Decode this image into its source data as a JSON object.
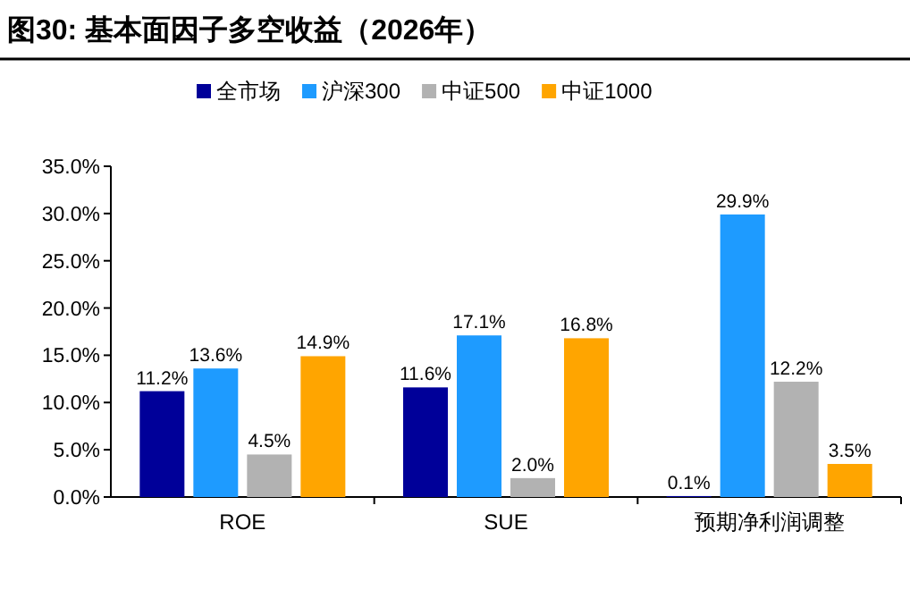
{
  "chart_data": {
    "type": "bar",
    "title": "图30:  基本面因子多空收益（2026年）",
    "categories": [
      "ROE",
      "SUE",
      "预期净利润调整"
    ],
    "series": [
      {
        "name": "全市场",
        "color": "#000099",
        "values": [
          11.2,
          11.6,
          0.1
        ],
        "value_labels": [
          "11.2%",
          "11.6%",
          "0.1%"
        ]
      },
      {
        "name": "沪深300",
        "color": "#1e9bff",
        "values": [
          13.6,
          17.1,
          29.9
        ],
        "value_labels": [
          "13.6%",
          "17.1%",
          "29.9%"
        ]
      },
      {
        "name": "中证500",
        "color": "#b2b2b2",
        "values": [
          4.5,
          2.0,
          12.2
        ],
        "value_labels": [
          "4.5%",
          "2.0%",
          "12.2%"
        ]
      },
      {
        "name": "中证1000",
        "color": "#ffa500",
        "values": [
          14.9,
          16.8,
          3.5
        ],
        "value_labels": [
          "14.9%",
          "16.8%",
          "3.5%"
        ]
      }
    ],
    "ylim": [
      0,
      35
    ],
    "yticks": [
      {
        "value": 0,
        "label": "0.0%"
      },
      {
        "value": 5,
        "label": "5.0%"
      },
      {
        "value": 10,
        "label": "10.0%"
      },
      {
        "value": 15,
        "label": "15.0%"
      },
      {
        "value": 20,
        "label": "20.0%"
      },
      {
        "value": 25,
        "label": "25.0%"
      },
      {
        "value": 30,
        "label": "30.0%"
      },
      {
        "value": 35,
        "label": "35.0%"
      }
    ],
    "grid": false,
    "legend": "top"
  }
}
